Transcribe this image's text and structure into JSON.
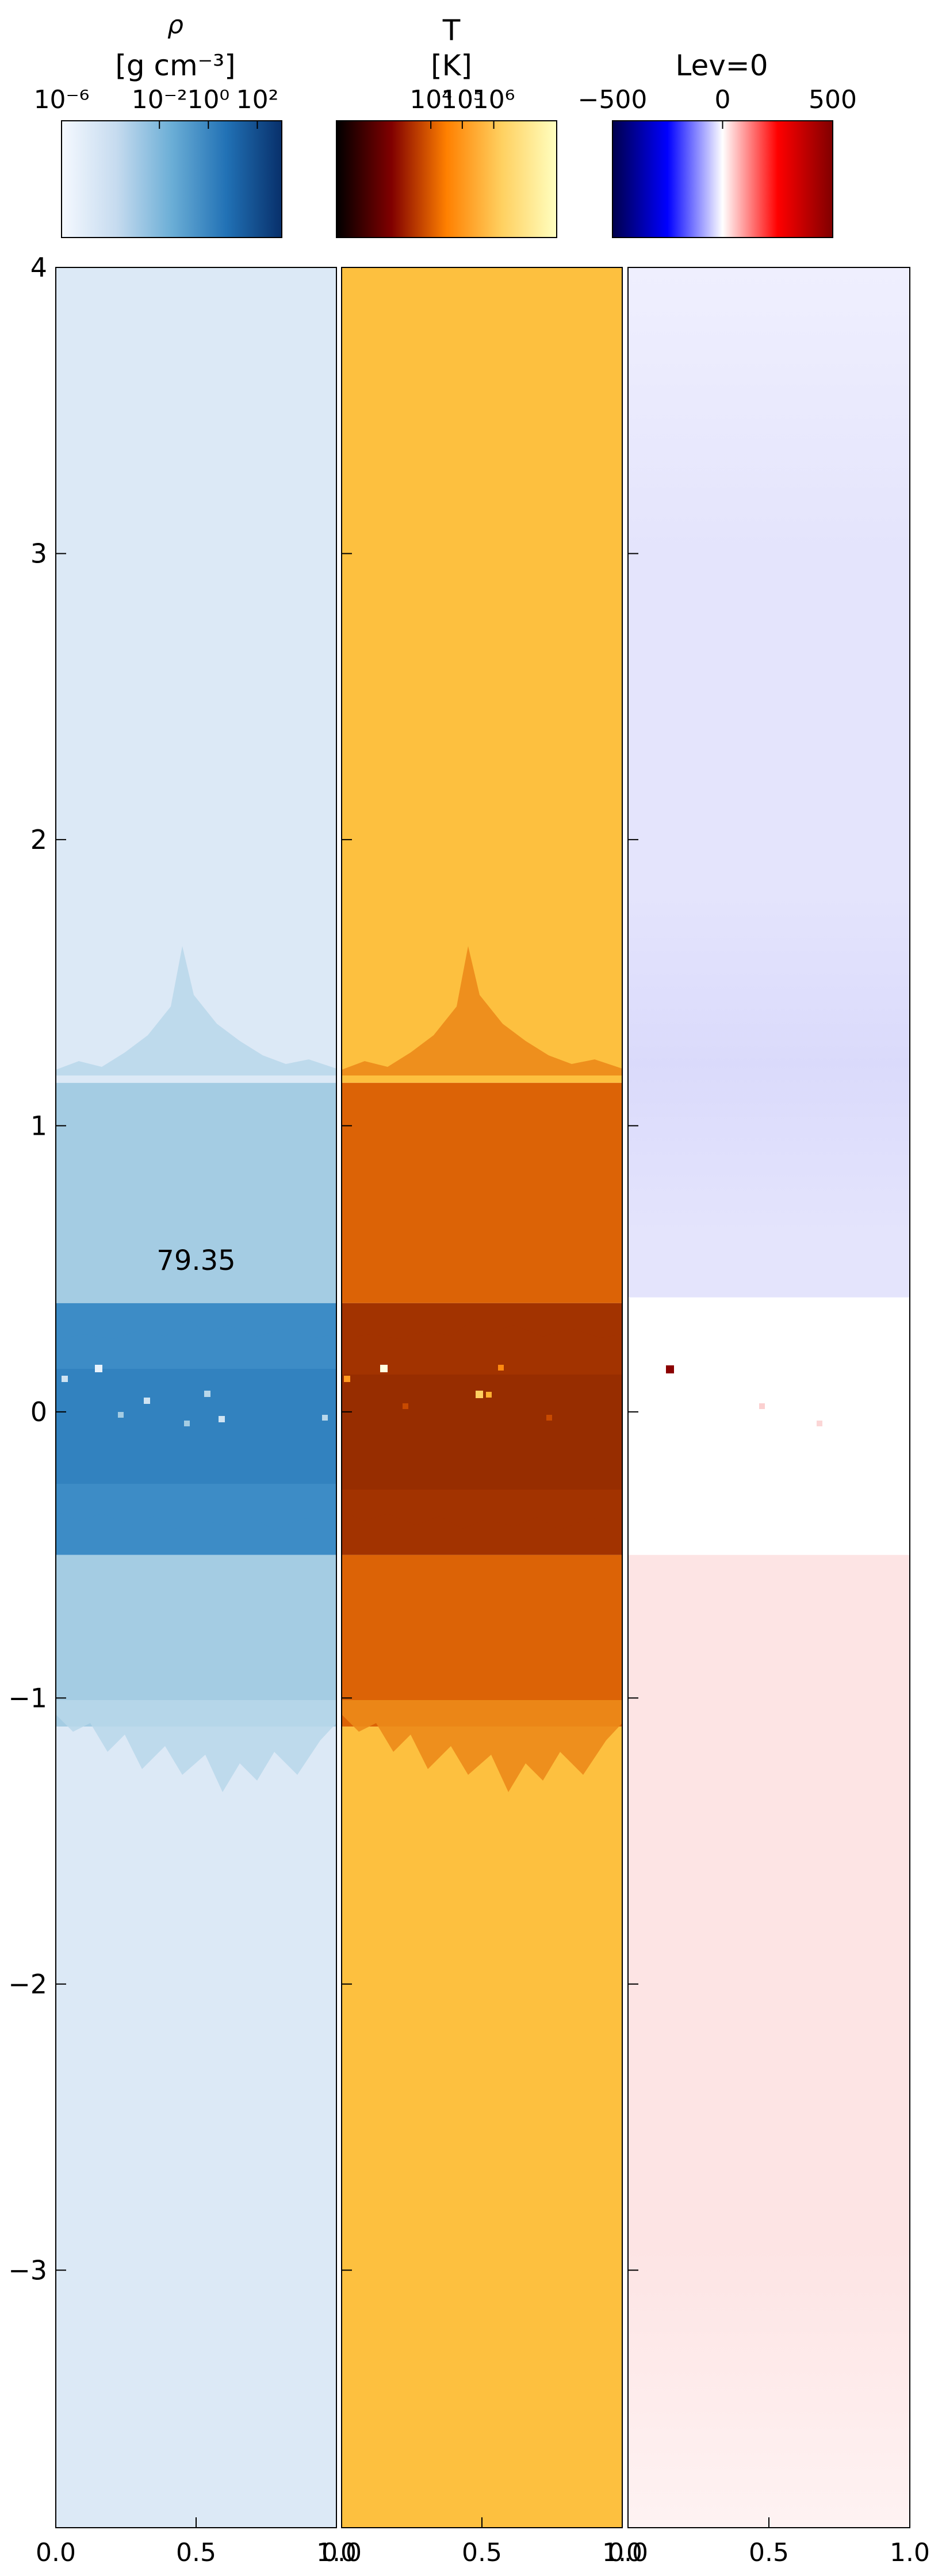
{
  "chart_data": {
    "type": "heatmap",
    "ylim": [
      -3.9,
      4.0
    ],
    "y_ticks": [
      4,
      3,
      2,
      1,
      0,
      -1,
      -2,
      -3
    ],
    "y_tick_labels": [
      "4",
      "3",
      "2",
      "1",
      "0",
      "−1",
      "−2",
      "−3"
    ],
    "x_ticks": [
      0.0,
      0.5,
      1.0
    ],
    "x_tick_labels": [
      "0.0",
      "0.5",
      "1.0"
    ],
    "annotation": {
      "text": "79.35",
      "x": 0.5,
      "y": 0.53
    },
    "panels": [
      {
        "id": "density",
        "colormap": "Blues",
        "colorbar": {
          "title": "ρ",
          "unit": "[g cm⁻³]",
          "tick_labels": [
            "10⁻⁶",
            "10⁻²",
            "10⁰",
            "10²"
          ],
          "tick_values": [
            -6,
            -2,
            0,
            2
          ],
          "range": [
            -6,
            3
          ],
          "stops": [
            "#f5f9ff",
            "#c6dbef",
            "#6baed6",
            "#2171b5",
            "#08306b"
          ]
        },
        "bands": [
          {
            "y": [
              1.15,
              4.0
            ],
            "color": "#dce9f6"
          },
          {
            "y": [
              0.38,
              1.15
            ],
            "color": "#a4cce3"
          },
          {
            "y": [
              -0.5,
              0.38
            ],
            "color": "#3d8cc6"
          },
          {
            "y": [
              -1.1,
              -0.5
            ],
            "color": "#a4cce3"
          },
          {
            "y": [
              -3.9,
              -1.1
            ],
            "color": "#dce9f6"
          }
        ]
      },
      {
        "id": "temperature",
        "colormap": "afmhot",
        "colorbar": {
          "title": "T",
          "unit": "[K]",
          "tick_labels": [
            "10⁴",
            "10⁵",
            "10⁶"
          ],
          "tick_values": [
            4,
            5,
            6
          ],
          "range": [
            1,
            8
          ],
          "stops": [
            "#000000",
            "#800000",
            "#ff8000",
            "#ffd060",
            "#ffffc0"
          ]
        },
        "bands": [
          {
            "y": [
              1.15,
              4.0
            ],
            "color": "#fdc03f"
          },
          {
            "y": [
              0.38,
              1.15
            ],
            "color": "#dc6306"
          },
          {
            "y": [
              -0.5,
              0.38
            ],
            "color": "#a23300"
          },
          {
            "y": [
              -1.1,
              -0.5
            ],
            "color": "#dc6306"
          },
          {
            "y": [
              -3.9,
              -1.1
            ],
            "color": "#fdc03f"
          }
        ]
      },
      {
        "id": "level",
        "colormap": "seismic",
        "colorbar": {
          "title": "Lev=0",
          "unit": "",
          "tick_labels": [
            "−500",
            "0",
            "500"
          ],
          "tick_values": [
            -500,
            0,
            500
          ],
          "range": [
            -500,
            500
          ],
          "stops": [
            "#00004c",
            "#0000ff",
            "#ffffff",
            "#ff0000",
            "#800000"
          ]
        },
        "bands": [
          {
            "y": [
              0.4,
              4.0
            ],
            "color": "#e4e4fc"
          },
          {
            "y": [
              -0.5,
              0.4
            ],
            "color": "#ffffff"
          },
          {
            "y": [
              -3.9,
              -0.5
            ],
            "color": "#fde4e4"
          }
        ]
      }
    ]
  }
}
